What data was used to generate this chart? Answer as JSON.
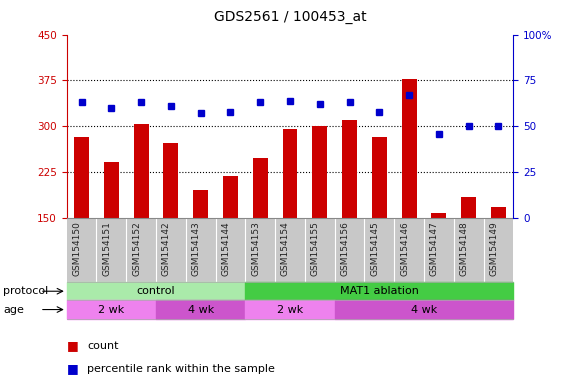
{
  "title": "GDS2561 / 100453_at",
  "samples": [
    "GSM154150",
    "GSM154151",
    "GSM154152",
    "GSM154142",
    "GSM154143",
    "GSM154144",
    "GSM154153",
    "GSM154154",
    "GSM154155",
    "GSM154156",
    "GSM154145",
    "GSM154146",
    "GSM154147",
    "GSM154148",
    "GSM154149"
  ],
  "counts": [
    283,
    242,
    303,
    272,
    196,
    218,
    248,
    295,
    300,
    310,
    283,
    378,
    158,
    185,
    168
  ],
  "percentiles": [
    63,
    60,
    63,
    61,
    57,
    58,
    63,
    64,
    62,
    63,
    58,
    67,
    46,
    50,
    50
  ],
  "left_ylim": [
    150,
    450
  ],
  "left_yticks": [
    150,
    225,
    300,
    375,
    450
  ],
  "right_ylim": [
    0,
    100
  ],
  "right_yticks": [
    0,
    25,
    50,
    75,
    100
  ],
  "bar_color": "#cc0000",
  "dot_color": "#0000cc",
  "bar_bottom": 150,
  "protocol_groups": [
    {
      "label": "control",
      "start": 0,
      "end": 6,
      "color": "#aaeaaa"
    },
    {
      "label": "MAT1 ablation",
      "start": 6,
      "end": 15,
      "color": "#44cc44"
    }
  ],
  "age_groups": [
    {
      "label": "2 wk",
      "start": 0,
      "end": 3,
      "color": "#ee82ee"
    },
    {
      "label": "4 wk",
      "start": 3,
      "end": 6,
      "color": "#cc55cc"
    },
    {
      "label": "2 wk",
      "start": 6,
      "end": 9,
      "color": "#ee82ee"
    },
    {
      "label": "4 wk",
      "start": 9,
      "end": 15,
      "color": "#cc55cc"
    }
  ],
  "left_axis_color": "#cc0000",
  "right_axis_color": "#0000cc",
  "xlabel_bg_color": "#c8c8c8",
  "grid_color": "#000000",
  "label_fontsize": 8,
  "tick_fontsize": 7.5
}
